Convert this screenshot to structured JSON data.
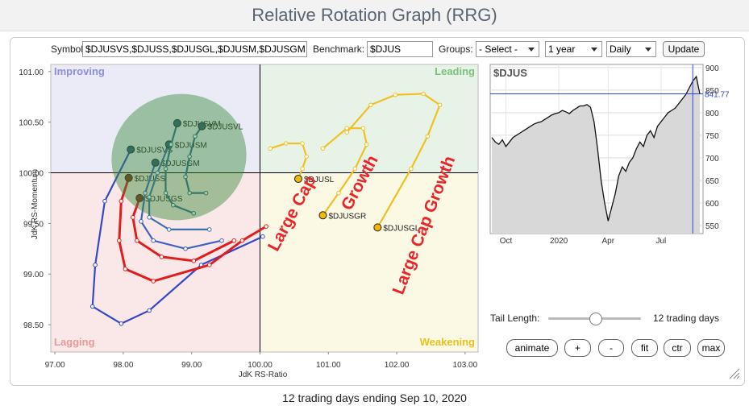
{
  "header": {
    "title": "Relative Rotation Graph (RRG)"
  },
  "controls": {
    "symbols_label": "Symbols:",
    "symbols": "$DJUSVS,$DJUSS,$DJUSGL,$DJUSM,$DJUSGM",
    "benchmark_label": "Benchmark:",
    "benchmark": "$DJUS",
    "groups_label": "Groups:",
    "groups": "- Select -",
    "period": "1 year",
    "interval": "Daily",
    "update": "Update"
  },
  "rrg": {
    "x_label": "JdK RS-Ratio",
    "y_label": "JdK RS-Momentum",
    "xlim": [
      96.94,
      103.19
    ],
    "ylim": [
      98.23,
      101.07
    ],
    "xticks": [
      {
        "value": 97,
        "label": "97.00"
      },
      {
        "value": 98,
        "label": "98.00"
      },
      {
        "value": 99,
        "label": "99.00"
      },
      {
        "value": 100,
        "label": "100.00"
      },
      {
        "value": 101,
        "label": "101.00"
      },
      {
        "value": 102,
        "label": "102.00"
      },
      {
        "value": 103,
        "label": "103.00"
      }
    ],
    "yticks": [
      {
        "value": 101,
        "label": "101.00"
      },
      {
        "value": 100.5,
        "label": "100.50"
      },
      {
        "value": 100,
        "label": "100.00"
      },
      {
        "value": 99.5,
        "label": "99.50"
      },
      {
        "value": 99,
        "label": "99.00"
      },
      {
        "value": 98.5,
        "label": "98.50"
      }
    ],
    "quadrants": {
      "improving": "Improving",
      "leading": "Leading",
      "lagging": "Lagging",
      "weakening": "Weakening"
    },
    "annotations": [
      "Large Cap",
      "Growth",
      "Large Cap Growth"
    ],
    "series": [
      {
        "name": "$DJUSVS",
        "color": "#3347c8",
        "x": [
          100.04,
          99.14,
          98.38,
          97.97,
          97.55,
          97.59,
          97.73,
          98.11
        ],
        "y": [
          99.37,
          99.09,
          98.64,
          98.51,
          98.68,
          99.09,
          99.72,
          100.23
        ]
      },
      {
        "name": "$DJUSS",
        "color": "#e01c1c",
        "x": [
          100.09,
          99.74,
          99.26,
          98.44,
          98.03,
          97.94,
          97.97,
          98.08
        ],
        "y": [
          99.47,
          99.33,
          99.09,
          98.93,
          99.05,
          99.33,
          99.72,
          99.95
        ]
      },
      {
        "name": "$DJUSGS",
        "color": "#e01c1c",
        "x": [
          99.62,
          99.03,
          98.56,
          98.2,
          98.14,
          98.24
        ],
        "y": [
          99.33,
          99.13,
          99.17,
          99.33,
          99.56,
          99.75
        ]
      },
      {
        "name": "$DJUSGM",
        "color": "#3f62c0",
        "x": [
          99.44,
          98.91,
          98.44,
          98.26,
          98.32,
          98.47
        ],
        "y": [
          99.33,
          99.25,
          99.33,
          99.52,
          99.8,
          100.1
        ]
      },
      {
        "name": "$DJUSM",
        "color": "#3a70b0",
        "x": [
          99.26,
          98.67,
          98.38,
          98.38,
          98.5,
          98.67
        ],
        "y": [
          99.44,
          99.44,
          99.56,
          99.76,
          100,
          100.28
        ]
      },
      {
        "name": "$DJUSVM",
        "color": "#2e6a90",
        "x": [
          99.03,
          98.73,
          98.62,
          98.62,
          98.7,
          98.79
        ],
        "y": [
          99.6,
          99.68,
          99.8,
          100.04,
          100.28,
          100.49
        ]
      },
      {
        "name": "$DJUSVL",
        "color": "#2e6a90",
        "x": [
          99.21,
          98.97,
          98.91,
          98.97,
          99.05,
          99.15
        ],
        "y": [
          99.8,
          99.8,
          99.96,
          100.16,
          100.36,
          100.46
        ]
      },
      {
        "name": "$DJUSL",
        "color": "#f0c020",
        "x": [
          100.15,
          100.38,
          100.62,
          100.68,
          100.62,
          100.56
        ],
        "y": [
          100.24,
          100.29,
          100.29,
          100.16,
          100.04,
          99.94
        ]
      },
      {
        "name": "$DJUSGR",
        "color": "#f0c020",
        "x": [
          100.92,
          101.27,
          101.51,
          101.56,
          101.39,
          101.15,
          100.92
        ],
        "y": [
          100.24,
          100.44,
          100.44,
          100.28,
          100.04,
          99.8,
          99.58
        ]
      },
      {
        "name": "$DJUSGL",
        "color": "#f0c020",
        "x": [
          101.27,
          101.62,
          101.98,
          102.39,
          102.63,
          102.45,
          102.21,
          101.72
        ],
        "y": [
          100.4,
          100.67,
          100.77,
          100.78,
          100.67,
          100.36,
          100.04,
          99.46
        ]
      }
    ]
  },
  "benchmark_chart": {
    "title": "$DJUS",
    "ylim": [
      532,
      907
    ],
    "yticks": [
      900,
      850,
      800,
      750,
      700,
      650,
      600,
      550
    ],
    "xticks": [
      {
        "value": 4,
        "label": "Oct"
      },
      {
        "value": 19,
        "label": "2020"
      },
      {
        "value": 33,
        "label": "Apr"
      },
      {
        "value": 48,
        "label": "Jul"
      }
    ],
    "values": [
      745,
      735,
      730,
      740,
      725,
      735,
      745,
      750,
      755,
      760,
      765,
      770,
      775,
      778,
      780,
      785,
      790,
      795,
      798,
      800,
      805,
      802,
      798,
      805,
      810,
      815,
      815,
      818,
      812,
      780,
      720,
      650,
      600,
      560,
      590,
      620,
      660,
      680,
      670,
      690,
      700,
      720,
      735,
      725,
      750,
      760,
      745,
      770,
      780,
      790,
      800,
      805,
      810,
      820,
      830,
      840,
      855,
      870,
      880,
      841.77
    ]
  },
  "tail": {
    "label": "Tail Length:",
    "value_text": "12 trading days"
  },
  "buttons": [
    "animate",
    "+",
    "-",
    "fit",
    "ctr",
    "max"
  ],
  "footer": "12 trading days ending Sep 10, 2020"
}
